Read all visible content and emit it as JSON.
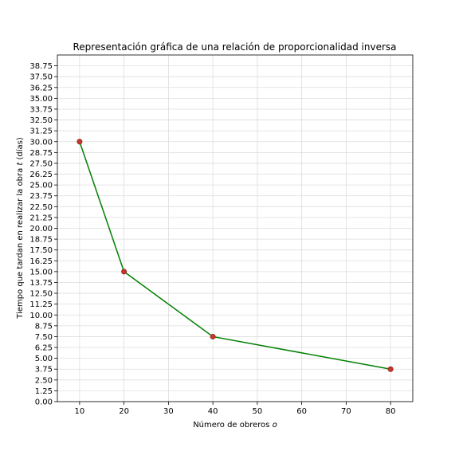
{
  "chart_data": {
    "type": "line",
    "title": "Representación gráfica de una relación de proporcionalidad inversa",
    "xlabel_prefix": "Número de obreros ",
    "xlabel_var": "o",
    "xlabel_suffix": "",
    "ylabel_prefix": "Tiempo que tardan en realizar la obra ",
    "ylabel_var": "t",
    "ylabel_suffix": " (días)",
    "xlim": [
      5,
      85
    ],
    "ylim": [
      0,
      40
    ],
    "xticks": [
      10,
      20,
      30,
      40,
      50,
      60,
      70,
      80
    ],
    "yticks": [
      "0.00",
      "1.25",
      "2.50",
      "3.75",
      "5.00",
      "6.25",
      "7.50",
      "8.75",
      "10.00",
      "11.25",
      "12.50",
      "13.75",
      "15.00",
      "16.25",
      "17.50",
      "18.75",
      "20.00",
      "21.25",
      "22.50",
      "23.75",
      "25.00",
      "26.25",
      "27.50",
      "28.75",
      "30.00",
      "31.25",
      "32.50",
      "33.75",
      "35.00",
      "36.25",
      "37.50",
      "38.75"
    ],
    "grid": true,
    "series": [
      {
        "x": [
          10,
          20,
          40,
          80
        ],
        "y": [
          30,
          15,
          7.5,
          3.75
        ],
        "line_color": "#008000",
        "marker_color": "#c0392b"
      }
    ]
  }
}
